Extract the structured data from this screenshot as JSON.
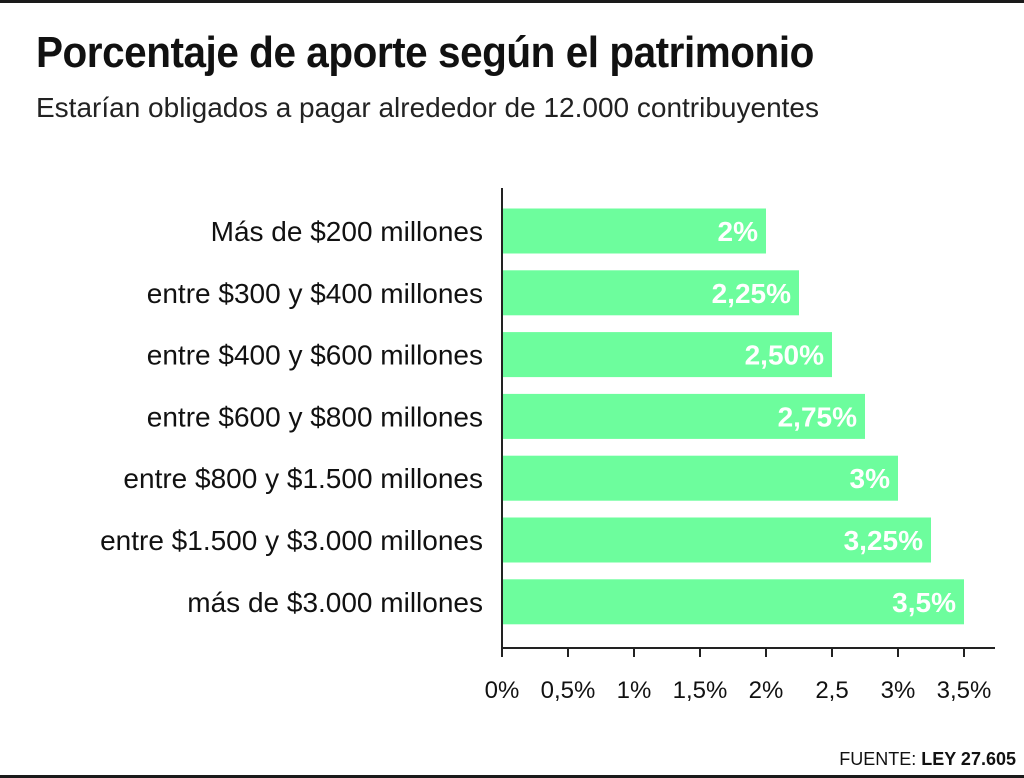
{
  "title": "Porcentaje de aporte según el patrimonio",
  "subtitle": "Estarían obligados a pagar alrededor de 12.000 contribuyentes",
  "source": {
    "prefix": "FUENTE:",
    "name": "LEY 27.605"
  },
  "colors": {
    "bar": "#6dfd9d",
    "bar_label": "#ffffff",
    "axis": "#222222",
    "text": "#111111"
  },
  "chart_data": {
    "type": "bar",
    "orientation": "horizontal",
    "categories": [
      "Más de $200 millones",
      "entre $300 y $400 millones",
      "entre $400 y $600 millones",
      "entre $600 y $800 millones",
      "entre $800 y $1.500 millones",
      "entre $1.500 y $3.000 millones",
      "más de $3.000 millones"
    ],
    "values": [
      2,
      2.25,
      2.5,
      2.75,
      3,
      3.25,
      3.5
    ],
    "data_labels": [
      "2%",
      "2,25%",
      "2,50%",
      "2,75%",
      "3%",
      "3,25%",
      "3,5%"
    ],
    "xlim": [
      0,
      3.7
    ],
    "xticks": [
      0,
      0.5,
      1,
      1.5,
      2,
      2.5,
      3,
      3.5
    ],
    "xtick_labels": [
      "0%",
      "0,5%",
      "1%",
      "1,5%",
      "2%",
      "2,5",
      "3%",
      "3,5%"
    ],
    "grid": false,
    "legend": "none"
  }
}
